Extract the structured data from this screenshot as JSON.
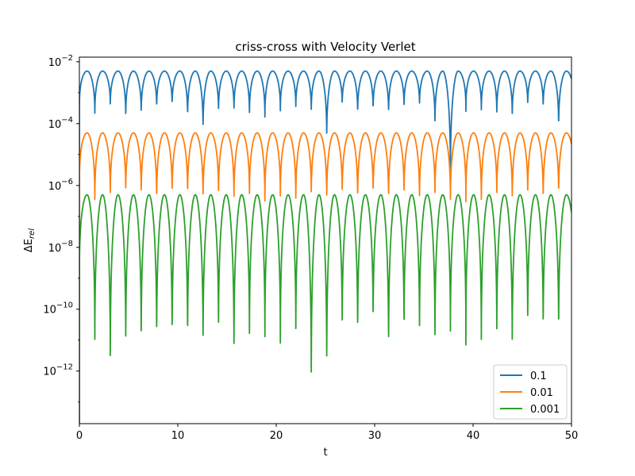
{
  "chart_data": {
    "type": "line",
    "title": "criss-cross with Velocity Verlet",
    "xlabel": "t",
    "ylabel": "ΔE",
    "ylabel_subscript": "rel",
    "xlim": [
      0,
      50
    ],
    "ylim_exponent": [
      -13.7,
      -1.85
    ],
    "yscale": "log",
    "grid": false,
    "legend_position": "bottom-right",
    "x_ticks": [
      0,
      10,
      20,
      30,
      40,
      50
    ],
    "x_tick_labels": [
      "0",
      "10",
      "20",
      "30",
      "40",
      "50"
    ],
    "y_tick_exponents": [
      -2,
      -4,
      -6,
      -8,
      -10,
      -12
    ],
    "y_tick_base": "10",
    "y_tick_labels": [
      "−2",
      "−4",
      "−6",
      "−8",
      "−10",
      "−12"
    ],
    "oscillation_period": 1.5708,
    "series": [
      {
        "name": "0.1",
        "color": "#1f77b4",
        "peak": 0.005,
        "base_dip": 0.0003,
        "dips": [
          {
            "t": 1.57,
            "value": 0.00015
          },
          {
            "t": 3.14,
            "value": 0.0003
          },
          {
            "t": 4.71,
            "value": 0.00012
          },
          {
            "t": 6.28,
            "value": 0.00015
          },
          {
            "t": 7.85,
            "value": 0.00025
          },
          {
            "t": 9.42,
            "value": 0.0003
          },
          {
            "t": 10.99,
            "value": 0.00012
          },
          {
            "t": 12.57,
            "value": 4e-05
          },
          {
            "t": 14.14,
            "value": 0.00018
          },
          {
            "t": 15.71,
            "value": 0.0002
          },
          {
            "t": 17.28,
            "value": 0.00015
          },
          {
            "t": 18.85,
            "value": 0.00012
          },
          {
            "t": 20.42,
            "value": 0.0002
          },
          {
            "t": 21.99,
            "value": 0.00025
          },
          {
            "t": 23.56,
            "value": 0.00018
          },
          {
            "t": 25.13,
            "value": 2e-05
          },
          {
            "t": 26.7,
            "value": 0.0003
          },
          {
            "t": 28.27,
            "value": 0.00015
          },
          {
            "t": 29.85,
            "value": 0.0002
          },
          {
            "t": 31.42,
            "value": 0.00015
          },
          {
            "t": 32.99,
            "value": 0.00025
          },
          {
            "t": 34.56,
            "value": 0.0003
          },
          {
            "t": 36.13,
            "value": 7e-05
          },
          {
            "t": 37.7,
            "value": 1e-06
          },
          {
            "t": 39.27,
            "value": 0.00025
          },
          {
            "t": 40.84,
            "value": 0.0002
          },
          {
            "t": 42.41,
            "value": 0.00015
          },
          {
            "t": 43.98,
            "value": 0.00012
          },
          {
            "t": 45.55,
            "value": 0.0003
          },
          {
            "t": 47.12,
            "value": 0.00025
          },
          {
            "t": 48.69,
            "value": 5e-05
          }
        ]
      },
      {
        "name": "0.01",
        "color": "#ff7f0e",
        "peak": 5e-05,
        "base_dip": 1e-06,
        "dips": [
          {
            "t": 1.57,
            "value": 2e-07
          },
          {
            "t": 3.14,
            "value": 3e-07
          },
          {
            "t": 4.71,
            "value": 4e-07
          },
          {
            "t": 6.28,
            "value": 3e-07
          },
          {
            "t": 7.85,
            "value": 2e-07
          },
          {
            "t": 9.42,
            "value": 3e-07
          },
          {
            "t": 10.99,
            "value": 3e-07
          },
          {
            "t": 12.57,
            "value": 2e-07
          },
          {
            "t": 14.14,
            "value": 3e-07
          },
          {
            "t": 15.71,
            "value": 2e-07
          },
          {
            "t": 17.28,
            "value": 3e-07
          },
          {
            "t": 18.85,
            "value": 2e-07
          },
          {
            "t": 20.42,
            "value": 3e-07
          },
          {
            "t": 21.99,
            "value": 2e-07
          },
          {
            "t": 23.56,
            "value": 3e-07
          },
          {
            "t": 25.13,
            "value": 2e-07
          },
          {
            "t": 26.7,
            "value": 3e-07
          },
          {
            "t": 28.27,
            "value": 2e-07
          },
          {
            "t": 29.85,
            "value": 3e-07
          },
          {
            "t": 31.42,
            "value": 2e-07
          },
          {
            "t": 32.99,
            "value": 3e-07
          },
          {
            "t": 34.56,
            "value": 2e-07
          },
          {
            "t": 36.13,
            "value": 3e-07
          },
          {
            "t": 37.7,
            "value": 2e-07
          },
          {
            "t": 39.27,
            "value": 3e-07
          },
          {
            "t": 40.84,
            "value": 2e-07
          },
          {
            "t": 42.41,
            "value": 3e-07
          },
          {
            "t": 43.98,
            "value": 2e-07
          },
          {
            "t": 45.55,
            "value": 3e-07
          },
          {
            "t": 47.12,
            "value": 2e-07
          },
          {
            "t": 48.69,
            "value": 3e-07
          }
        ]
      },
      {
        "name": "0.001",
        "color": "#2ca02c",
        "peak": 5e-07,
        "base_dip": 1e-09,
        "dips": [
          {
            "t": 1.57,
            "value": 3e-12
          },
          {
            "t": 3.14,
            "value": 5e-13
          },
          {
            "t": 4.71,
            "value": 2e-12
          },
          {
            "t": 6.28,
            "value": 2.5e-12
          },
          {
            "t": 7.85,
            "value": 3e-12
          },
          {
            "t": 9.42,
            "value": 3e-12
          },
          {
            "t": 10.99,
            "value": 3e-12
          },
          {
            "t": 12.57,
            "value": 1.5e-12
          },
          {
            "t": 14.14,
            "value": 6e-12
          },
          {
            "t": 15.71,
            "value": 1.2e-12
          },
          {
            "t": 17.28,
            "value": 4e-12
          },
          {
            "t": 18.85,
            "value": 5e-12
          },
          {
            "t": 20.42,
            "value": 3e-12
          },
          {
            "t": 21.99,
            "value": 6e-12
          },
          {
            "t": 23.56,
            "value": 1e-13
          },
          {
            "t": 25.13,
            "value": 3e-13
          },
          {
            "t": 26.7,
            "value": 6e-12
          },
          {
            "t": 28.27,
            "value": 4e-12
          },
          {
            "t": 29.85,
            "value": 1e-11
          },
          {
            "t": 31.42,
            "value": 1.2e-12
          },
          {
            "t": 32.99,
            "value": 7e-12
          },
          {
            "t": 34.56,
            "value": 5e-12
          },
          {
            "t": 36.13,
            "value": 3e-12
          },
          {
            "t": 37.7,
            "value": 6e-12
          },
          {
            "t": 39.27,
            "value": 7e-12
          },
          {
            "t": 40.84,
            "value": 3e-12
          },
          {
            "t": 42.41,
            "value": 5e-12
          },
          {
            "t": 43.98,
            "value": 1.5e-12
          },
          {
            "t": 45.55,
            "value": 1e-11
          },
          {
            "t": 47.12,
            "value": 6e-12
          },
          {
            "t": 48.69,
            "value": 5e-12
          }
        ]
      }
    ]
  }
}
